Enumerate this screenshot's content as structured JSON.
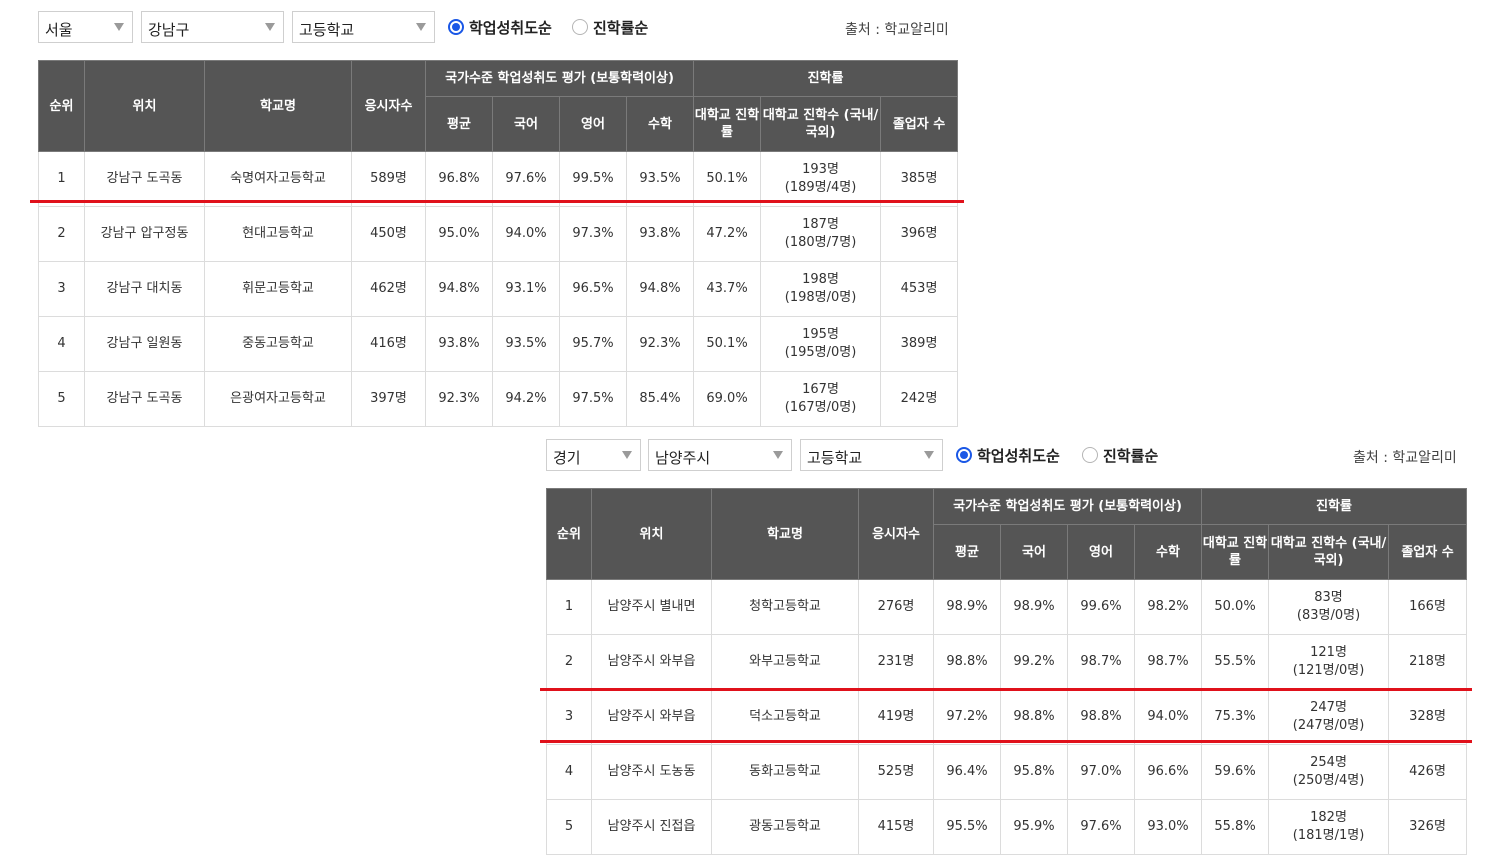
{
  "panels": [
    {
      "filters": {
        "region": "서울",
        "district": "강남구",
        "school_type": "고등학교"
      },
      "sort_options": [
        "학업성취도순",
        "진학률순"
      ],
      "sort_selected": "학업성취도순",
      "source": "출처 : 학교알리미",
      "headers": {
        "rank": "순위",
        "location": "위치",
        "school": "학교명",
        "examinees": "응시자수",
        "achievement_group": "국가수준 학업성취도 평가 (보통학력이상)",
        "avg": "평균",
        "korean": "국어",
        "english": "영어",
        "math": "수학",
        "advancement_group": "진학률",
        "univ_rate": "대학교 진학률",
        "univ_count": "대학교 진학수 (국내/국외)",
        "graduates": "졸업자 수"
      },
      "rows": [
        {
          "rank": "1",
          "location": "강남구 도곡동",
          "school": "숙명여자고등학교",
          "examinees": "589명",
          "avg": "96.8%",
          "korean": "97.6%",
          "english": "99.5%",
          "math": "93.5%",
          "univ_rate": "50.1%",
          "univ_count": "193명",
          "univ_detail": "(189명/4명)",
          "graduates": "385명"
        },
        {
          "rank": "2",
          "location": "강남구 압구정동",
          "school": "현대고등학교",
          "examinees": "450명",
          "avg": "95.0%",
          "korean": "94.0%",
          "english": "97.3%",
          "math": "93.8%",
          "univ_rate": "47.2%",
          "univ_count": "187명",
          "univ_detail": "(180명/7명)",
          "graduates": "396명"
        },
        {
          "rank": "3",
          "location": "강남구 대치동",
          "school": "휘문고등학교",
          "examinees": "462명",
          "avg": "94.8%",
          "korean": "93.1%",
          "english": "96.5%",
          "math": "94.8%",
          "univ_rate": "43.7%",
          "univ_count": "198명",
          "univ_detail": "(198명/0명)",
          "graduates": "453명"
        },
        {
          "rank": "4",
          "location": "강남구 일원동",
          "school": "중동고등학교",
          "examinees": "416명",
          "avg": "93.8%",
          "korean": "93.5%",
          "english": "95.7%",
          "math": "92.3%",
          "univ_rate": "50.1%",
          "univ_count": "195명",
          "univ_detail": "(195명/0명)",
          "graduates": "389명"
        },
        {
          "rank": "5",
          "location": "강남구 도곡동",
          "school": "은광여자고등학교",
          "examinees": "397명",
          "avg": "92.3%",
          "korean": "94.2%",
          "english": "97.5%",
          "math": "85.4%",
          "univ_rate": "69.0%",
          "univ_count": "167명",
          "univ_detail": "(167명/0명)",
          "graduates": "242명"
        }
      ]
    },
    {
      "filters": {
        "region": "경기",
        "district": "남양주시",
        "school_type": "고등학교"
      },
      "sort_options": [
        "학업성취도순",
        "진학률순"
      ],
      "sort_selected": "학업성취도순",
      "source": "출처 : 학교알리미",
      "headers": {
        "rank": "순위",
        "location": "위치",
        "school": "학교명",
        "examinees": "응시자수",
        "achievement_group": "국가수준 학업성취도 평가 (보통학력이상)",
        "avg": "평균",
        "korean": "국어",
        "english": "영어",
        "math": "수학",
        "advancement_group": "진학률",
        "univ_rate": "대학교 진학률",
        "univ_count": "대학교 진학수 (국내/국외)",
        "graduates": "졸업자 수"
      },
      "rows": [
        {
          "rank": "1",
          "location": "남양주시 별내면",
          "school": "청학고등학교",
          "examinees": "276명",
          "avg": "98.9%",
          "korean": "98.9%",
          "english": "99.6%",
          "math": "98.2%",
          "univ_rate": "50.0%",
          "univ_count": "83명",
          "univ_detail": "(83명/0명)",
          "graduates": "166명"
        },
        {
          "rank": "2",
          "location": "남양주시 와부읍",
          "school": "와부고등학교",
          "examinees": "231명",
          "avg": "98.8%",
          "korean": "99.2%",
          "english": "98.7%",
          "math": "98.7%",
          "univ_rate": "55.5%",
          "univ_count": "121명",
          "univ_detail": "(121명/0명)",
          "graduates": "218명"
        },
        {
          "rank": "3",
          "location": "남양주시 와부읍",
          "school": "덕소고등학교",
          "examinees": "419명",
          "avg": "97.2%",
          "korean": "98.8%",
          "english": "98.8%",
          "math": "94.0%",
          "univ_rate": "75.3%",
          "univ_count": "247명",
          "univ_detail": "(247명/0명)",
          "graduates": "328명"
        },
        {
          "rank": "4",
          "location": "남양주시 도농동",
          "school": "동화고등학교",
          "examinees": "525명",
          "avg": "96.4%",
          "korean": "95.8%",
          "english": "97.0%",
          "math": "96.6%",
          "univ_rate": "59.6%",
          "univ_count": "254명",
          "univ_detail": "(250명/4명)",
          "graduates": "426명"
        },
        {
          "rank": "5",
          "location": "남양주시 진접읍",
          "school": "광동고등학교",
          "examinees": "415명",
          "avg": "95.5%",
          "korean": "95.9%",
          "english": "97.6%",
          "math": "93.0%",
          "univ_rate": "55.8%",
          "univ_count": "182명",
          "univ_detail": "(181명/1명)",
          "graduates": "326명"
        }
      ]
    }
  ],
  "highlight_color": "#e0111b"
}
